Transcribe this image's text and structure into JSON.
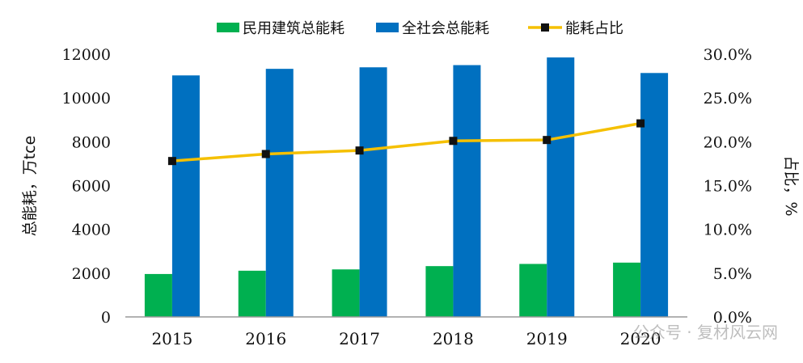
{
  "chart_data": {
    "type": "bar",
    "categories": [
      "2015",
      "2016",
      "2017",
      "2018",
      "2019",
      "2020"
    ],
    "series": [
      {
        "name": "民用建筑总能耗",
        "type": "bar",
        "axis": "left",
        "color": "#00b050",
        "values": [
          1960,
          2110,
          2170,
          2320,
          2420,
          2480
        ]
      },
      {
        "name": "全社会总能耗",
        "type": "bar",
        "axis": "left",
        "color": "#0070c0",
        "values": [
          11030,
          11330,
          11400,
          11500,
          11850,
          11140
        ]
      },
      {
        "name": "能耗占比",
        "type": "line",
        "axis": "right",
        "color": "#f5c000",
        "marker_color": "#111111",
        "values": [
          17.8,
          18.6,
          19.0,
          20.1,
          20.2,
          22.1
        ]
      }
    ],
    "ylabel": "总能耗，万tce",
    "y2label": "占比，%",
    "ylim": [
      0,
      12000
    ],
    "y2lim": [
      0,
      30
    ],
    "yticks": [
      "0",
      "2000",
      "4000",
      "6000",
      "8000",
      "10000",
      "12000"
    ],
    "y2ticks": [
      "0.0%",
      "5.0%",
      "10.0%",
      "15.0%",
      "20.0%",
      "25.0%",
      "30.0%"
    ],
    "grid": false,
    "legend_position": "top"
  },
  "watermark": {
    "text": "公众号 · 复材风云网"
  }
}
